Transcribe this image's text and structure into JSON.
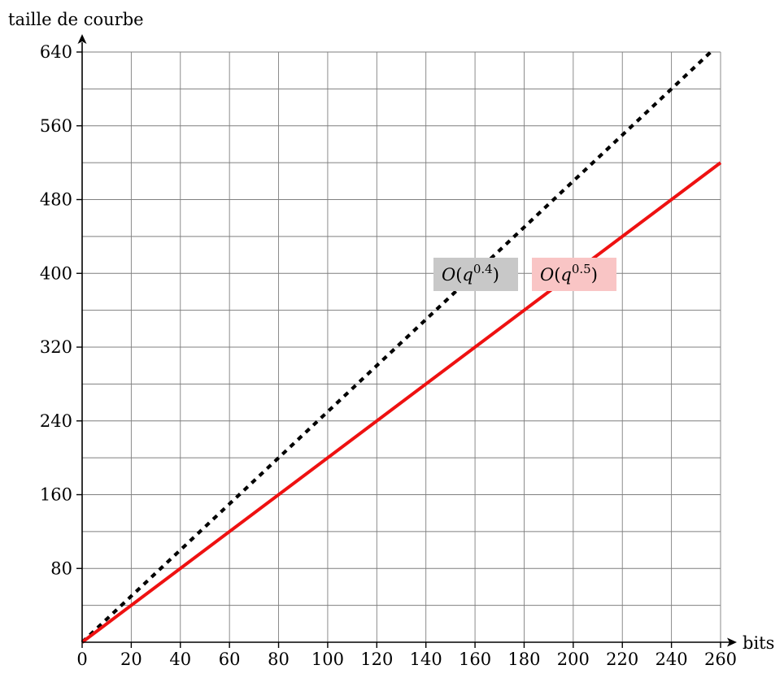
{
  "chart_data": {
    "type": "line",
    "title": "",
    "xlabel": "bits",
    "ylabel": "taille de courbe",
    "xlim": [
      0,
      260
    ],
    "ylim": [
      0,
      640
    ],
    "x_ticks": [
      0,
      20,
      40,
      60,
      80,
      100,
      120,
      140,
      160,
      180,
      200,
      220,
      240,
      260
    ],
    "y_ticks": [
      80,
      160,
      240,
      320,
      400,
      480,
      560,
      640
    ],
    "grid": true,
    "series": [
      {
        "label": "O(q^{0.4})",
        "color": "#000000",
        "style": "dotted",
        "annotation_bg": "#c8c8c8",
        "x": [
          0,
          260
        ],
        "y": [
          0,
          650
        ]
      },
      {
        "label": "O(q^{0.5})",
        "color": "#ee1111",
        "style": "solid",
        "annotation_bg": "#f9c5c5",
        "x": [
          0,
          260
        ],
        "y": [
          0,
          520
        ]
      }
    ]
  }
}
